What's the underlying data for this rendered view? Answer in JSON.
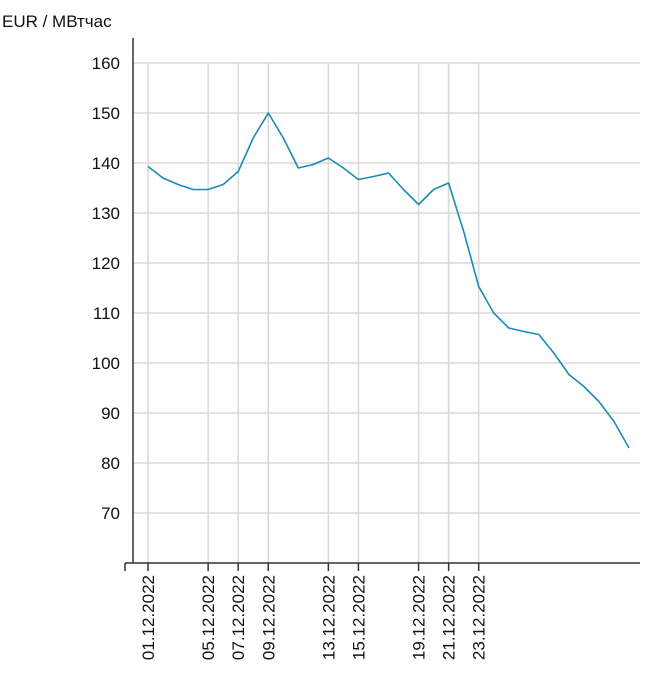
{
  "chart_data": {
    "type": "line",
    "ylabel": "EUR / МВтчас",
    "xlabel": "",
    "ylim": [
      60,
      170
    ],
    "yticks": [
      70,
      80,
      90,
      100,
      110,
      120,
      130,
      140,
      150,
      160
    ],
    "grid": true,
    "series_color": "#1a8bb3",
    "grid_color": "#d9d9d9",
    "axis_color": "#333333",
    "x_tick_labels": [
      "01.12.2022",
      "05.12.2022",
      "07.12.2022",
      "09.12.2022",
      "13.12.2022",
      "15.12.2022",
      "19.12.2022",
      "21.12.2022",
      "23.12.2022"
    ],
    "x": [
      "01.12.2022",
      "02.12.2022",
      "03.12.2022",
      "04.12.2022",
      "05.12.2022",
      "06.12.2022",
      "07.12.2022",
      "08.12.2022",
      "09.12.2022",
      "10.12.2022",
      "11.12.2022",
      "12.12.2022",
      "13.12.2022",
      "14.12.2022",
      "15.12.2022",
      "16.12.2022",
      "17.12.2022",
      "18.12.2022",
      "19.12.2022",
      "20.12.2022",
      "21.12.2022",
      "22.12.2022",
      "23.12.2022",
      "24.12.2022",
      "25.12.2022",
      "26.12.2022",
      "27.12.2022",
      "28.12.2022",
      "29.12.2022",
      "30.12.2022",
      "31.12.2022",
      "01.01.2023",
      "02.01.2023"
    ],
    "values": [
      139.3,
      137,
      135.7,
      134.7,
      134.7,
      135.7,
      138.3,
      145,
      150,
      145,
      139,
      139.7,
      141,
      139,
      136.7,
      137.3,
      138,
      134.7,
      131.7,
      134.7,
      136,
      126.3,
      115.3,
      110,
      107,
      106.3,
      105.7,
      102,
      97.7,
      95.3,
      92.3,
      88.3,
      83
    ]
  }
}
